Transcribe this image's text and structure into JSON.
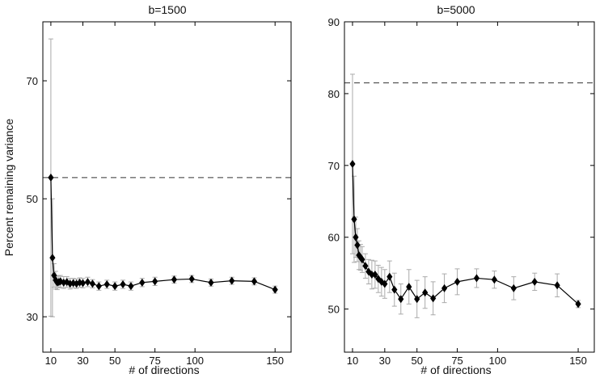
{
  "chart_data": [
    {
      "type": "line",
      "title": "b=1500",
      "xlabel": "# of directions",
      "ylabel": "Percent remaining variance",
      "xlim": [
        5,
        160
      ],
      "ylim": [
        24,
        80
      ],
      "xticks": [
        10,
        30,
        50,
        75,
        100,
        150
      ],
      "yticks": [
        30,
        50,
        70
      ],
      "grid": false,
      "baseline": 53.6,
      "series": [
        {
          "x": [
            10,
            11,
            12,
            13,
            14,
            15,
            16,
            18,
            20,
            22,
            24,
            26,
            28,
            30,
            33,
            36,
            40,
            45,
            50,
            55,
            60,
            67,
            75,
            87,
            98,
            110,
            123,
            137,
            150
          ],
          "y": [
            53.6,
            40.0,
            37.0,
            36.2,
            35.8,
            35.9,
            36.0,
            35.8,
            35.9,
            35.6,
            35.7,
            35.6,
            35.8,
            35.7,
            35.9,
            35.6,
            35.2,
            35.5,
            35.2,
            35.5,
            35.2,
            35.8,
            36.0,
            36.3,
            36.4,
            35.8,
            36.1,
            36.0,
            34.6
          ],
          "err": [
            23.5,
            10.0,
            2.0,
            1.5,
            1.2,
            1.0,
            1.0,
            1.0,
            0.9,
            0.9,
            0.8,
            0.8,
            0.8,
            0.8,
            0.8,
            0.7,
            0.7,
            0.7,
            0.7,
            0.7,
            0.7,
            0.7,
            0.7,
            0.6,
            0.6,
            0.6,
            0.6,
            0.6,
            0.6
          ]
        }
      ]
    },
    {
      "type": "line",
      "title": "b=5000",
      "xlabel": "# of directions",
      "ylabel": "",
      "xlim": [
        5,
        160
      ],
      "ylim": [
        44,
        90
      ],
      "xticks": [
        10,
        30,
        50,
        75,
        100,
        150
      ],
      "yticks": [
        50,
        60,
        70,
        80,
        90
      ],
      "grid": false,
      "baseline": 81.5,
      "series": [
        {
          "x": [
            10,
            11,
            12,
            13,
            14,
            15,
            16,
            18,
            20,
            22,
            24,
            26,
            28,
            30,
            33,
            36,
            40,
            45,
            50,
            55,
            60,
            67,
            75,
            87,
            98,
            110,
            123,
            137,
            150
          ],
          "y": [
            70.2,
            62.5,
            60.0,
            58.9,
            57.5,
            57.2,
            56.9,
            56.0,
            55.2,
            54.8,
            54.8,
            54.2,
            53.8,
            53.5,
            54.5,
            52.7,
            51.4,
            53.1,
            51.4,
            52.3,
            51.5,
            52.9,
            53.8,
            54.3,
            54.1,
            52.9,
            53.8,
            53.3,
            50.7
          ],
          "err": [
            12.5,
            6.0,
            2.8,
            2.3,
            2.0,
            1.8,
            1.8,
            1.7,
            1.7,
            2.0,
            1.9,
            1.9,
            2.0,
            2.0,
            2.2,
            2.3,
            2.1,
            2.4,
            2.6,
            2.2,
            2.3,
            2.0,
            1.8,
            1.3,
            1.2,
            1.6,
            1.2,
            1.6,
            0.5
          ]
        }
      ]
    }
  ]
}
